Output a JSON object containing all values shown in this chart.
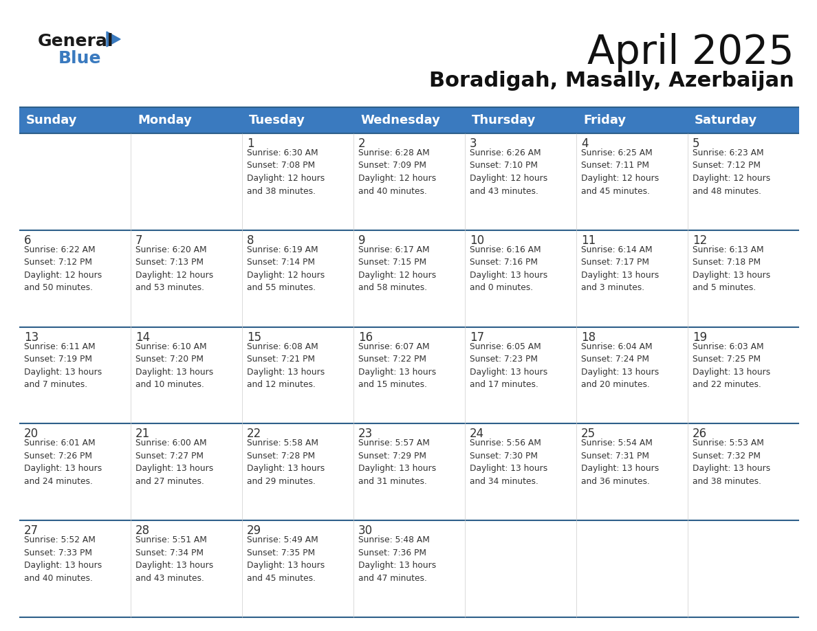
{
  "title": "April 2025",
  "subtitle": "Boradigah, Masally, Azerbaijan",
  "header_bg": "#3a7abf",
  "header_text": "#ffffff",
  "day_names": [
    "Sunday",
    "Monday",
    "Tuesday",
    "Wednesday",
    "Thursday",
    "Friday",
    "Saturday"
  ],
  "row_separator_color": "#2e5f8a",
  "cell_bg": "#ffffff",
  "text_color": "#333333",
  "num_color": "#333333",
  "title_color": "#111111",
  "calendar": [
    [
      {
        "day": "",
        "info": ""
      },
      {
        "day": "",
        "info": ""
      },
      {
        "day": "1",
        "info": "Sunrise: 6:30 AM\nSunset: 7:08 PM\nDaylight: 12 hours\nand 38 minutes."
      },
      {
        "day": "2",
        "info": "Sunrise: 6:28 AM\nSunset: 7:09 PM\nDaylight: 12 hours\nand 40 minutes."
      },
      {
        "day": "3",
        "info": "Sunrise: 6:26 AM\nSunset: 7:10 PM\nDaylight: 12 hours\nand 43 minutes."
      },
      {
        "day": "4",
        "info": "Sunrise: 6:25 AM\nSunset: 7:11 PM\nDaylight: 12 hours\nand 45 minutes."
      },
      {
        "day": "5",
        "info": "Sunrise: 6:23 AM\nSunset: 7:12 PM\nDaylight: 12 hours\nand 48 minutes."
      }
    ],
    [
      {
        "day": "6",
        "info": "Sunrise: 6:22 AM\nSunset: 7:12 PM\nDaylight: 12 hours\nand 50 minutes."
      },
      {
        "day": "7",
        "info": "Sunrise: 6:20 AM\nSunset: 7:13 PM\nDaylight: 12 hours\nand 53 minutes."
      },
      {
        "day": "8",
        "info": "Sunrise: 6:19 AM\nSunset: 7:14 PM\nDaylight: 12 hours\nand 55 minutes."
      },
      {
        "day": "9",
        "info": "Sunrise: 6:17 AM\nSunset: 7:15 PM\nDaylight: 12 hours\nand 58 minutes."
      },
      {
        "day": "10",
        "info": "Sunrise: 6:16 AM\nSunset: 7:16 PM\nDaylight: 13 hours\nand 0 minutes."
      },
      {
        "day": "11",
        "info": "Sunrise: 6:14 AM\nSunset: 7:17 PM\nDaylight: 13 hours\nand 3 minutes."
      },
      {
        "day": "12",
        "info": "Sunrise: 6:13 AM\nSunset: 7:18 PM\nDaylight: 13 hours\nand 5 minutes."
      }
    ],
    [
      {
        "day": "13",
        "info": "Sunrise: 6:11 AM\nSunset: 7:19 PM\nDaylight: 13 hours\nand 7 minutes."
      },
      {
        "day": "14",
        "info": "Sunrise: 6:10 AM\nSunset: 7:20 PM\nDaylight: 13 hours\nand 10 minutes."
      },
      {
        "day": "15",
        "info": "Sunrise: 6:08 AM\nSunset: 7:21 PM\nDaylight: 13 hours\nand 12 minutes."
      },
      {
        "day": "16",
        "info": "Sunrise: 6:07 AM\nSunset: 7:22 PM\nDaylight: 13 hours\nand 15 minutes."
      },
      {
        "day": "17",
        "info": "Sunrise: 6:05 AM\nSunset: 7:23 PM\nDaylight: 13 hours\nand 17 minutes."
      },
      {
        "day": "18",
        "info": "Sunrise: 6:04 AM\nSunset: 7:24 PM\nDaylight: 13 hours\nand 20 minutes."
      },
      {
        "day": "19",
        "info": "Sunrise: 6:03 AM\nSunset: 7:25 PM\nDaylight: 13 hours\nand 22 minutes."
      }
    ],
    [
      {
        "day": "20",
        "info": "Sunrise: 6:01 AM\nSunset: 7:26 PM\nDaylight: 13 hours\nand 24 minutes."
      },
      {
        "day": "21",
        "info": "Sunrise: 6:00 AM\nSunset: 7:27 PM\nDaylight: 13 hours\nand 27 minutes."
      },
      {
        "day": "22",
        "info": "Sunrise: 5:58 AM\nSunset: 7:28 PM\nDaylight: 13 hours\nand 29 minutes."
      },
      {
        "day": "23",
        "info": "Sunrise: 5:57 AM\nSunset: 7:29 PM\nDaylight: 13 hours\nand 31 minutes."
      },
      {
        "day": "24",
        "info": "Sunrise: 5:56 AM\nSunset: 7:30 PM\nDaylight: 13 hours\nand 34 minutes."
      },
      {
        "day": "25",
        "info": "Sunrise: 5:54 AM\nSunset: 7:31 PM\nDaylight: 13 hours\nand 36 minutes."
      },
      {
        "day": "26",
        "info": "Sunrise: 5:53 AM\nSunset: 7:32 PM\nDaylight: 13 hours\nand 38 minutes."
      }
    ],
    [
      {
        "day": "27",
        "info": "Sunrise: 5:52 AM\nSunset: 7:33 PM\nDaylight: 13 hours\nand 40 minutes."
      },
      {
        "day": "28",
        "info": "Sunrise: 5:51 AM\nSunset: 7:34 PM\nDaylight: 13 hours\nand 43 minutes."
      },
      {
        "day": "29",
        "info": "Sunrise: 5:49 AM\nSunset: 7:35 PM\nDaylight: 13 hours\nand 45 minutes."
      },
      {
        "day": "30",
        "info": "Sunrise: 5:48 AM\nSunset: 7:36 PM\nDaylight: 13 hours\nand 47 minutes."
      },
      {
        "day": "",
        "info": ""
      },
      {
        "day": "",
        "info": ""
      },
      {
        "day": "",
        "info": ""
      }
    ]
  ],
  "logo_text1": "General",
  "logo_text2": "Blue",
  "logo_triangle_color": "#3a7abf",
  "fig_width": 11.88,
  "fig_height": 9.18,
  "dpi": 100
}
